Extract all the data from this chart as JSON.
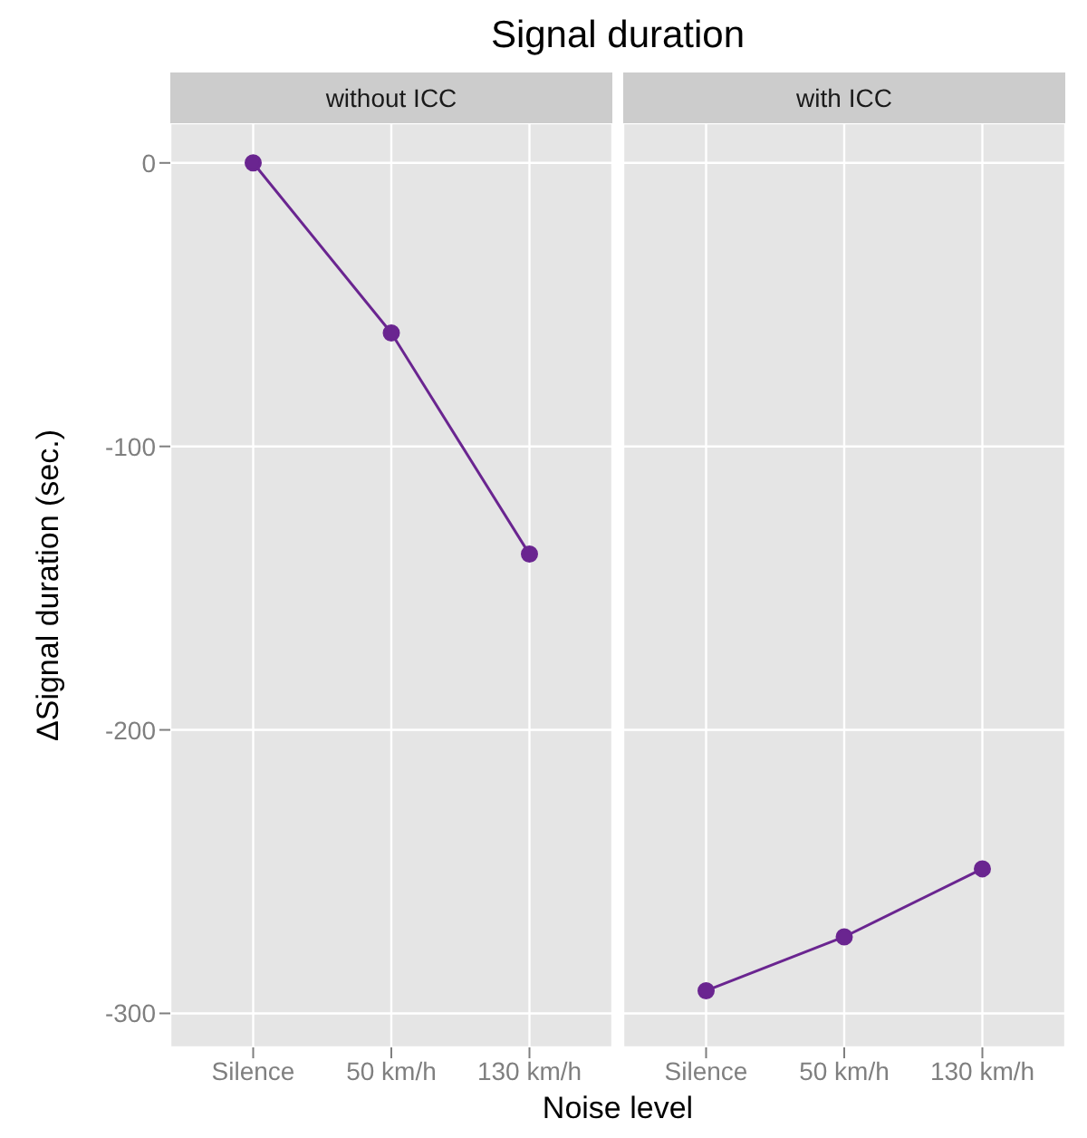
{
  "chart_data": [
    {
      "type": "line",
      "title": "Signal duration",
      "subtitle": "without ICC",
      "xlabel": "Noise level",
      "ylabel": "ΔSignal duration (sec.)",
      "categories": [
        "Silence",
        "50 km/h",
        "130 km/h"
      ],
      "series": [
        {
          "color": "#6a2590",
          "values": [
            0,
            -60,
            -138
          ]
        }
      ],
      "ylim": [
        -312,
        14
      ],
      "yticks": [
        0,
        -100,
        -200,
        -300
      ],
      "grid": true,
      "marker": "circle"
    },
    {
      "type": "line",
      "subtitle": "with ICC",
      "categories": [
        "Silence",
        "50 km/h",
        "130 km/h"
      ],
      "series": [
        {
          "color": "#6a2590",
          "values": [
            -292,
            -273,
            -249
          ]
        }
      ],
      "ylim": [
        -312,
        14
      ],
      "yticks": [
        0,
        -100,
        -200,
        -300
      ],
      "grid": true,
      "marker": "circle",
      "tick_labels": "x"
    }
  ]
}
